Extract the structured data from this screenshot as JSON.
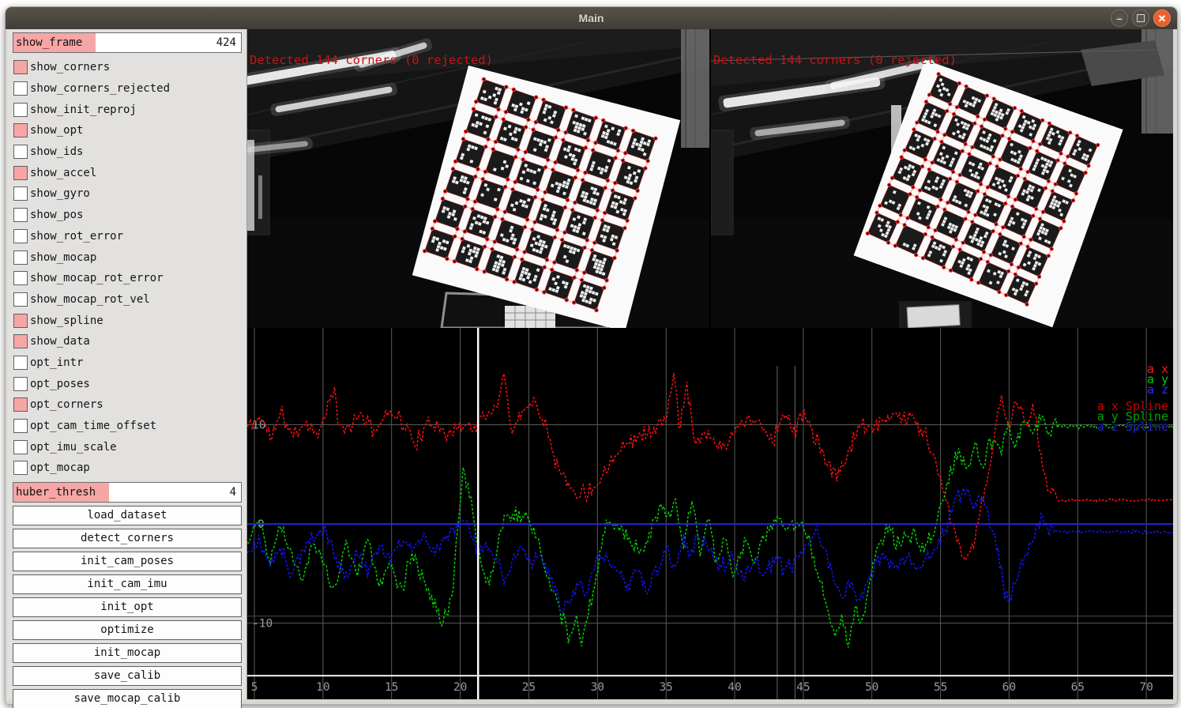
{
  "window": {
    "title": "Main",
    "controls": [
      "minimize",
      "maximize",
      "close"
    ]
  },
  "sidebar": {
    "fields": [
      {
        "label": "show_frame",
        "value": "424"
      },
      {
        "label": "huber_thresh",
        "value": "4"
      }
    ],
    "checkboxes": [
      {
        "label": "show_corners",
        "checked": true
      },
      {
        "label": "show_corners_rejected",
        "checked": false
      },
      {
        "label": "show_init_reproj",
        "checked": false
      },
      {
        "label": "show_opt",
        "checked": true
      },
      {
        "label": "show_ids",
        "checked": false
      },
      {
        "label": "show_accel",
        "checked": true
      },
      {
        "label": "show_gyro",
        "checked": false
      },
      {
        "label": "show_pos",
        "checked": false
      },
      {
        "label": "show_rot_error",
        "checked": false
      },
      {
        "label": "show_mocap",
        "checked": false
      },
      {
        "label": "show_mocap_rot_error",
        "checked": false
      },
      {
        "label": "show_mocap_rot_vel",
        "checked": false
      },
      {
        "label": "show_spline",
        "checked": true
      },
      {
        "label": "show_data",
        "checked": true
      },
      {
        "label": "opt_intr",
        "checked": false
      },
      {
        "label": "opt_poses",
        "checked": false
      },
      {
        "label": "opt_corners",
        "checked": true
      },
      {
        "label": "opt_cam_time_offset",
        "checked": false
      },
      {
        "label": "opt_imu_scale",
        "checked": false
      },
      {
        "label": "opt_mocap",
        "checked": false
      }
    ],
    "buttons": [
      "load_dataset",
      "detect_corners",
      "init_cam_poses",
      "init_cam_imu",
      "init_opt",
      "optimize",
      "init_mocap",
      "save_calib",
      "save_mocap_calib"
    ]
  },
  "cameras": [
    {
      "overlay": "Detected 144 corners (0 rejected)",
      "detected_corners": 144,
      "rejected_corners": 0
    },
    {
      "overlay": "Detected 144 corners (0 rejected)",
      "detected_corners": 144,
      "rejected_corners": 0
    }
  ],
  "chart_data": {
    "type": "line",
    "title": "",
    "xlabel": "",
    "ylabel": "",
    "x_ticks": [
      5,
      10,
      15,
      20,
      25,
      30,
      35,
      40,
      45,
      50,
      55,
      60,
      65,
      70
    ],
    "y_ticks": [
      10,
      0,
      -10
    ],
    "x_range": [
      4.48,
      71.95
    ],
    "y_range": [
      -17.6,
      19.76
    ],
    "axis_line_y": -15.3,
    "grid": true,
    "cursor_x": 21.3,
    "cursor_color": "#ffffff",
    "zero_line": {
      "y": 0,
      "color": "#2222ee"
    },
    "extra_vlines": [
      43.1,
      44.4
    ],
    "extra_hlines": [
      -9.3
    ],
    "legend_position": "top-right",
    "legend": [
      {
        "label": "a x",
        "color": "#ff1a1a"
      },
      {
        "label": "a y",
        "color": "#00cc00"
      },
      {
        "label": "a z",
        "color": "#2d2dff"
      }
    ],
    "legend_spline": [
      {
        "label": "a x Spline",
        "color": "#cf0000"
      },
      {
        "label": "a y Spline",
        "color": "#00a500"
      },
      {
        "label": "a z Spline",
        "color": "#2525cf"
      }
    ],
    "series": [
      {
        "name": "a x",
        "color": "#ff0e0e",
        "seed": 11,
        "noise": 0.75,
        "calm_after": 63.5,
        "calm_noise": 0.12,
        "anchors": [
          [
            4.5,
            9.8
          ],
          [
            5.5,
            10.8
          ],
          [
            6.2,
            8.6
          ],
          [
            7,
            11.2
          ],
          [
            7.8,
            8.8
          ],
          [
            8.6,
            10.4
          ],
          [
            9.4,
            9.2
          ],
          [
            10.2,
            10.8
          ],
          [
            10.8,
            13.9
          ],
          [
            11.2,
            9.4
          ],
          [
            12,
            9.8
          ],
          [
            12.8,
            11.2
          ],
          [
            13.6,
            9.2
          ],
          [
            14.4,
            10.6
          ],
          [
            15.2,
            11.6
          ],
          [
            16,
            9.6
          ],
          [
            16.8,
            8.2
          ],
          [
            17.6,
            9.8
          ],
          [
            18.4,
            10.4
          ],
          [
            19.2,
            8.8
          ],
          [
            20,
            10.2
          ],
          [
            20.8,
            9.6
          ],
          [
            21.6,
            10.6
          ],
          [
            22.4,
            11.4
          ],
          [
            23.2,
            14.9
          ],
          [
            23.8,
            9.2
          ],
          [
            24.6,
            11.8
          ],
          [
            25.4,
            12.2
          ],
          [
            26.2,
            10.4
          ],
          [
            27,
            6.2
          ],
          [
            27.8,
            4
          ],
          [
            28.6,
            3.2
          ],
          [
            29.4,
            3.4
          ],
          [
            30.2,
            4.4
          ],
          [
            31,
            6.6
          ],
          [
            32,
            8.2
          ],
          [
            33,
            8.8
          ],
          [
            34,
            9.4
          ],
          [
            35,
            10.6
          ],
          [
            35.6,
            15.3
          ],
          [
            36,
            9.4
          ],
          [
            36.5,
            14.8
          ],
          [
            37,
            8.6
          ],
          [
            38,
            9.2
          ],
          [
            39,
            7.6
          ],
          [
            40,
            9.4
          ],
          [
            41,
            10.8
          ],
          [
            42,
            9.8
          ],
          [
            42.8,
            8.4
          ],
          [
            43.6,
            11.4
          ],
          [
            44.4,
            9
          ],
          [
            45,
            11.6
          ],
          [
            45.8,
            8.8
          ],
          [
            46.6,
            6.4
          ],
          [
            47.4,
            5
          ],
          [
            48.2,
            6.6
          ],
          [
            49,
            9.8
          ],
          [
            50,
            9.4
          ],
          [
            51,
            10.6
          ],
          [
            52,
            11.2
          ],
          [
            53,
            10.4
          ],
          [
            54,
            9
          ],
          [
            54.8,
            5.4
          ],
          [
            55.6,
            1
          ],
          [
            56.4,
            -2.6
          ],
          [
            57,
            -3.8
          ],
          [
            57.6,
            -1
          ],
          [
            58.2,
            3
          ],
          [
            58.8,
            8
          ],
          [
            59.4,
            12.4
          ],
          [
            60,
            9.6
          ],
          [
            60.6,
            12.8
          ],
          [
            61.2,
            9.8
          ],
          [
            61.8,
            11.6
          ],
          [
            62.4,
            6
          ],
          [
            63,
            3
          ],
          [
            63.6,
            2.4
          ],
          [
            72,
            2.4
          ]
        ]
      },
      {
        "name": "a y",
        "color": "#00d000",
        "seed": 22,
        "noise": 0.75,
        "calm_after": 63.5,
        "calm_noise": 0.22,
        "anchors": [
          [
            4.5,
            -2
          ],
          [
            5.3,
            1
          ],
          [
            6.1,
            -4
          ],
          [
            6.9,
            0.6
          ],
          [
            7.7,
            -3.2
          ],
          [
            8.5,
            -5.6
          ],
          [
            9.3,
            -1.2
          ],
          [
            10.1,
            -4.6
          ],
          [
            10.9,
            -6.4
          ],
          [
            11.7,
            -2.2
          ],
          [
            12.5,
            -5.2
          ],
          [
            13.3,
            -1.6
          ],
          [
            14.1,
            -6
          ],
          [
            14.9,
            -3.8
          ],
          [
            15.7,
            -6.6
          ],
          [
            16.5,
            -3
          ],
          [
            17.3,
            -5.8
          ],
          [
            18,
            -7.6
          ],
          [
            18.6,
            -9.6
          ],
          [
            19.4,
            -7.4
          ],
          [
            20.2,
            5.6
          ],
          [
            20.8,
            2
          ],
          [
            21.4,
            -3
          ],
          [
            22,
            -6.4
          ],
          [
            22.6,
            -3.6
          ],
          [
            23.2,
            0.6
          ],
          [
            24,
            1
          ],
          [
            24.8,
            0.4
          ],
          [
            25.6,
            -1.2
          ],
          [
            26.2,
            -4.2
          ],
          [
            26.8,
            -6.6
          ],
          [
            27.4,
            -9.4
          ],
          [
            27.9,
            -11.6
          ],
          [
            28.4,
            -9.2
          ],
          [
            28.9,
            -11.9
          ],
          [
            29.5,
            -7.8
          ],
          [
            30.1,
            -3.6
          ],
          [
            30.7,
            0.4
          ],
          [
            31.5,
            0
          ],
          [
            32.3,
            -1.4
          ],
          [
            33.1,
            -2.8
          ],
          [
            33.9,
            -0.8
          ],
          [
            34.5,
            1.6
          ],
          [
            35.1,
            0.4
          ],
          [
            35.7,
            2.2
          ],
          [
            36.3,
            -2.2
          ],
          [
            36.9,
            2.6
          ],
          [
            37.5,
            -3.2
          ],
          [
            38.1,
            0.8
          ],
          [
            38.7,
            -4.6
          ],
          [
            39.3,
            -1
          ],
          [
            39.9,
            -5.4
          ],
          [
            40.7,
            -2
          ],
          [
            41.5,
            -3.4
          ],
          [
            42.3,
            -1
          ],
          [
            43.1,
            0.6
          ],
          [
            43.9,
            -0.8
          ],
          [
            44.7,
            0.4
          ],
          [
            45.5,
            -2.2
          ],
          [
            46.1,
            -5
          ],
          [
            46.7,
            -8.2
          ],
          [
            47.3,
            -11
          ],
          [
            47.8,
            -9.4
          ],
          [
            48.3,
            -12
          ],
          [
            48.8,
            -8.4
          ],
          [
            49.3,
            -10.6
          ],
          [
            49.9,
            -5.4
          ],
          [
            50.5,
            -2
          ],
          [
            51.3,
            -0.6
          ],
          [
            52.1,
            -2.2
          ],
          [
            52.9,
            -1
          ],
          [
            53.7,
            -2.6
          ],
          [
            54.5,
            -1
          ],
          [
            55.1,
            2
          ],
          [
            55.7,
            5
          ],
          [
            56.3,
            7.6
          ],
          [
            56.9,
            5.4
          ],
          [
            57.5,
            8
          ],
          [
            58.1,
            6
          ],
          [
            58.7,
            8.6
          ],
          [
            59.3,
            7
          ],
          [
            59.9,
            9.6
          ],
          [
            60.5,
            7.6
          ],
          [
            61.1,
            10.6
          ],
          [
            61.7,
            8.6
          ],
          [
            62.3,
            10.8
          ],
          [
            62.9,
            9.2
          ],
          [
            63.5,
            9.9
          ],
          [
            72,
            9.8
          ]
        ]
      },
      {
        "name": "a z",
        "color": "#1414ff",
        "seed": 33,
        "noise": 0.7,
        "calm_after": 63.5,
        "calm_noise": 0.15,
        "anchors": [
          [
            4.5,
            -3
          ],
          [
            5.3,
            -1.6
          ],
          [
            6.1,
            -4.4
          ],
          [
            6.9,
            -2.4
          ],
          [
            7.7,
            -5
          ],
          [
            8.5,
            -3
          ],
          [
            9.3,
            -1.2
          ],
          [
            10.1,
            -0.6
          ],
          [
            10.9,
            -3.4
          ],
          [
            11.7,
            -5.4
          ],
          [
            12.5,
            -3
          ],
          [
            13.3,
            -4.6
          ],
          [
            14.1,
            -2.2
          ],
          [
            14.9,
            -3.6
          ],
          [
            15.7,
            -1.6
          ],
          [
            16.5,
            -2.6
          ],
          [
            17.3,
            -1.2
          ],
          [
            18.1,
            -2.8
          ],
          [
            18.9,
            -1.4
          ],
          [
            19.7,
            -0.6
          ],
          [
            20.3,
            0.4
          ],
          [
            20.9,
            -1.6
          ],
          [
            21.5,
            -3
          ],
          [
            22.1,
            -2.2
          ],
          [
            22.7,
            -4
          ],
          [
            23.3,
            -5.4
          ],
          [
            23.9,
            -3.6
          ],
          [
            24.5,
            -2.2
          ],
          [
            25.1,
            -4
          ],
          [
            25.7,
            -3
          ],
          [
            26.3,
            -4.2
          ],
          [
            26.9,
            -7
          ],
          [
            27.4,
            -9.2
          ],
          [
            28,
            -7.8
          ],
          [
            28.6,
            -6.2
          ],
          [
            29.2,
            -7
          ],
          [
            29.8,
            -4.2
          ],
          [
            30.6,
            -3.2
          ],
          [
            31.4,
            -5
          ],
          [
            32.2,
            -6.6
          ],
          [
            33,
            -4.2
          ],
          [
            33.6,
            -7
          ],
          [
            34.2,
            -5.2
          ],
          [
            35,
            -2.8
          ],
          [
            35.6,
            -4.2
          ],
          [
            36.2,
            -1.8
          ],
          [
            36.8,
            -3.2
          ],
          [
            37.4,
            -1.2
          ],
          [
            38.2,
            -2.6
          ],
          [
            39,
            -4.6
          ],
          [
            39.8,
            -3
          ],
          [
            40.6,
            -5.6
          ],
          [
            41.4,
            -3.6
          ],
          [
            42.2,
            -5
          ],
          [
            43,
            -3.6
          ],
          [
            43.8,
            -4.8
          ],
          [
            44.6,
            -3.4
          ],
          [
            45.4,
            -2
          ],
          [
            46,
            -0.8
          ],
          [
            46.6,
            -2.8
          ],
          [
            47.2,
            -5.2
          ],
          [
            47.8,
            -7.6
          ],
          [
            48.4,
            -5.8
          ],
          [
            49,
            -8.2
          ],
          [
            49.6,
            -6.4
          ],
          [
            50.2,
            -4.2
          ],
          [
            51,
            -3
          ],
          [
            51.8,
            -4.6
          ],
          [
            52.6,
            -3.2
          ],
          [
            53.4,
            -4.6
          ],
          [
            54.2,
            -3.2
          ],
          [
            55,
            -1.6
          ],
          [
            55.6,
            0.6
          ],
          [
            56.2,
            2.6
          ],
          [
            56.8,
            3.4
          ],
          [
            57.4,
            1.6
          ],
          [
            58,
            3
          ],
          [
            58.6,
            0.4
          ],
          [
            59.2,
            -3
          ],
          [
            59.6,
            -6.8
          ],
          [
            60,
            -7.6
          ],
          [
            60.6,
            -5
          ],
          [
            61.2,
            -3
          ],
          [
            61.8,
            -1
          ],
          [
            62.4,
            0.4
          ],
          [
            63,
            -0.6
          ],
          [
            63.6,
            -0.8
          ],
          [
            72,
            -0.8
          ]
        ]
      }
    ]
  }
}
